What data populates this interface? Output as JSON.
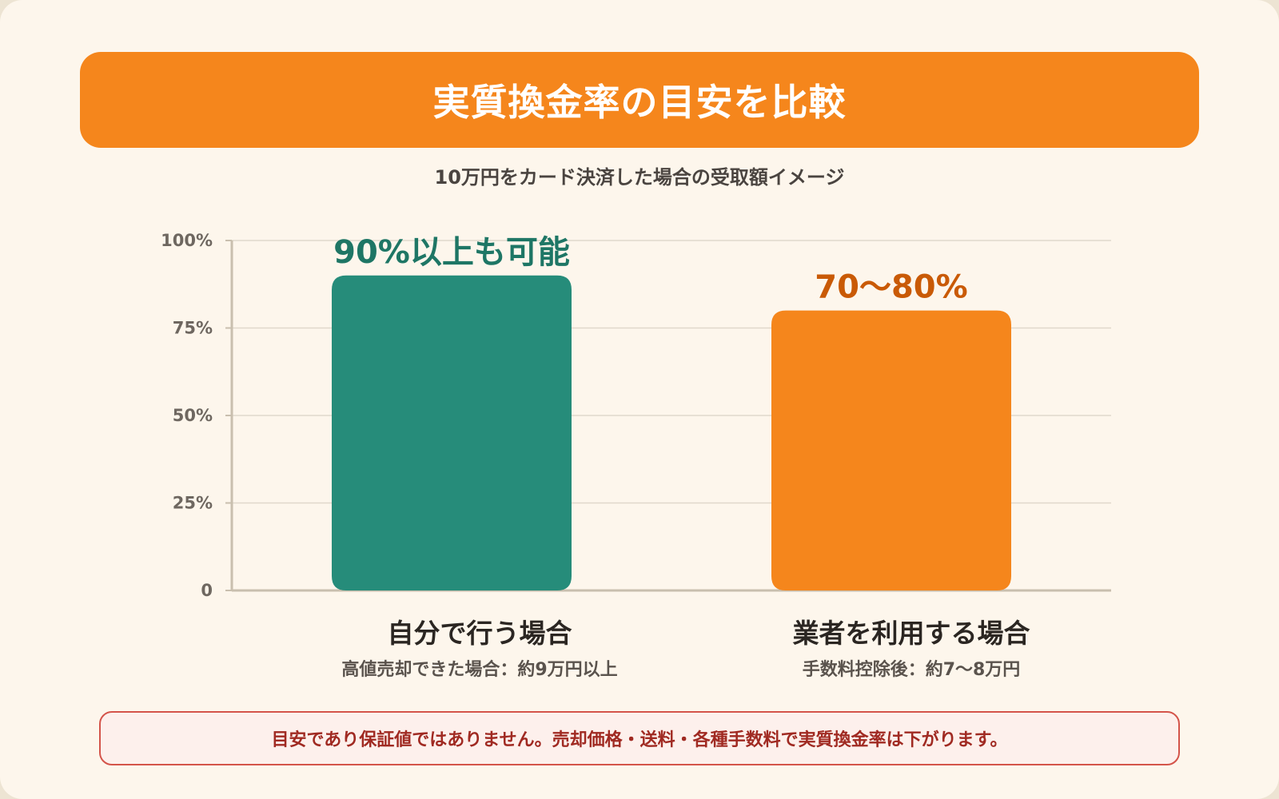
{
  "header": {
    "title": "実質換金率の目安を比較",
    "subtitle": "10万円をカード決済した場合の受取額イメージ"
  },
  "chart_data": {
    "type": "bar",
    "title": "実質換金率の目安を比較",
    "subtitle": "10万円をカード決済した場合の受取額イメージ",
    "categories": [
      "自分で行う場合",
      "業者を利用する場合"
    ],
    "category_notes": [
      "高値売却できた場合：約9万円以上",
      "手数料控除後：約7〜8万円"
    ],
    "values": [
      90,
      80
    ],
    "value_labels": [
      "90%以上も可能",
      "70〜80%"
    ],
    "bar_colors": [
      "#268c7a",
      "#f5861c"
    ],
    "label_colors": [
      "#1e7665",
      "#c95a06"
    ],
    "yticks": [
      "0",
      "25%",
      "50%",
      "75%",
      "100%"
    ],
    "ytick_values": [
      0,
      25,
      50,
      75,
      100
    ],
    "ylim": [
      0,
      100
    ],
    "grid": true,
    "xlabel": "",
    "ylabel": ""
  },
  "note": {
    "text": "目安であり保証値ではありません。売却価格・送料・各種手数料で実質換金率は下がります。"
  },
  "colors": {
    "accent": "#f5861c",
    "teal": "#268c7a",
    "background": "#fdf6ec",
    "note_border": "#d4544a"
  }
}
